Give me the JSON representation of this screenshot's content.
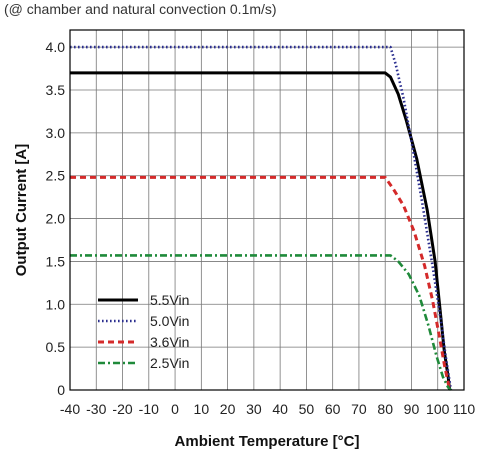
{
  "chart_data": {
    "type": "line",
    "subtitle": "(@ chamber and natural convection 0.1m/s)",
    "xlabel": "Ambient Temperature [°C]",
    "ylabel": "Output Current [A]",
    "xlim": [
      -40,
      110
    ],
    "ylim": [
      0,
      4.2
    ],
    "x_ticks": [
      "-40",
      "-30",
      "-20",
      "-10",
      "0",
      "10",
      "20",
      "30",
      "40",
      "50",
      "60",
      "70",
      "80",
      "90",
      "100",
      "110"
    ],
    "y_ticks": [
      "0",
      "0.5",
      "1.0",
      "1.5",
      "2.0",
      "2.5",
      "3.0",
      "3.5",
      "4.0"
    ],
    "grid": true,
    "legend_position": "bottom-left",
    "series": [
      {
        "name": "5.5Vin",
        "color": "#000000",
        "style": "solid",
        "points": [
          [
            -40,
            3.7
          ],
          [
            80,
            3.7
          ],
          [
            82,
            3.65
          ],
          [
            85,
            3.45
          ],
          [
            88,
            3.15
          ],
          [
            92,
            2.7
          ],
          [
            96,
            2.1
          ],
          [
            99,
            1.5
          ],
          [
            101,
            0.9
          ],
          [
            102.5,
            0.45
          ],
          [
            104,
            0.15
          ],
          [
            104.5,
            0
          ]
        ]
      },
      {
        "name": "5.0Vin",
        "color": "#2b2f8f",
        "style": "dotted",
        "points": [
          [
            -40,
            4.0
          ],
          [
            82,
            4.0
          ],
          [
            84,
            3.8
          ],
          [
            87,
            3.4
          ],
          [
            90,
            2.9
          ],
          [
            94,
            2.2
          ],
          [
            98,
            1.45
          ],
          [
            101,
            0.85
          ],
          [
            103,
            0.4
          ],
          [
            104.5,
            0.1
          ],
          [
            105,
            0
          ]
        ]
      },
      {
        "name": "3.6Vin",
        "color": "#d42a2a",
        "style": "dashed",
        "points": [
          [
            -40,
            2.48
          ],
          [
            80,
            2.48
          ],
          [
            83,
            2.35
          ],
          [
            87,
            2.15
          ],
          [
            91,
            1.85
          ],
          [
            95,
            1.45
          ],
          [
            98,
            1.05
          ],
          [
            100.5,
            0.65
          ],
          [
            102.5,
            0.3
          ],
          [
            104,
            0.08
          ],
          [
            104.5,
            0
          ]
        ]
      },
      {
        "name": "2.5Vin",
        "color": "#1f8a3a",
        "style": "dashdot",
        "points": [
          [
            -40,
            1.57
          ],
          [
            82,
            1.57
          ],
          [
            85,
            1.5
          ],
          [
            89,
            1.35
          ],
          [
            93,
            1.1
          ],
          [
            96.5,
            0.75
          ],
          [
            99.5,
            0.4
          ],
          [
            102,
            0.15
          ],
          [
            104,
            0.03
          ],
          [
            105,
            0
          ]
        ]
      }
    ]
  }
}
